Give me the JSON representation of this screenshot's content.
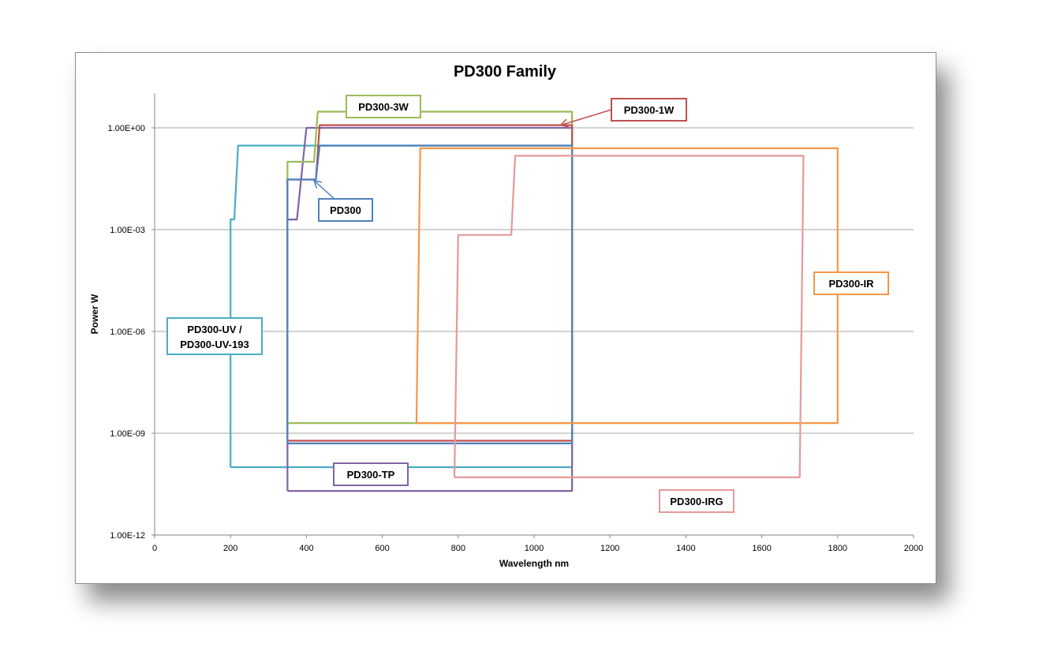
{
  "chart_data": {
    "type": "line",
    "title": "PD300 Family",
    "xlabel": "Wavelength nm",
    "ylabel": "Power W",
    "xlim": [
      0,
      2000
    ],
    "ylim_log10": [
      -12,
      1
    ],
    "y_scale": "log",
    "x_ticks": [
      0,
      200,
      400,
      600,
      800,
      1000,
      1200,
      1400,
      1600,
      1800,
      2000
    ],
    "y_ticks": [
      {
        "value": 1,
        "label": "1.00E+00"
      },
      {
        "value": 0.001,
        "label": "1.00E-03"
      },
      {
        "value": 1e-06,
        "label": "1.00E-06"
      },
      {
        "value": 1e-09,
        "label": "1.00E-09"
      },
      {
        "value": 1e-12,
        "label": "1.00E-12"
      }
    ],
    "grid": true,
    "legend": "none",
    "series": [
      {
        "name": "PD300-UV / PD300-UV-193",
        "color": "#4bacc6",
        "points": [
          [
            200,
            1e-10
          ],
          [
            200,
            0.002
          ],
          [
            210,
            0.002
          ],
          [
            220,
            0.3
          ],
          [
            1100,
            0.3
          ],
          [
            1100,
            1e-10
          ],
          [
            200,
            1e-10
          ]
        ]
      },
      {
        "name": "PD300-TP",
        "color": "#8064a2",
        "points": [
          [
            350,
            2e-11
          ],
          [
            350,
            0.002
          ],
          [
            375,
            0.002
          ],
          [
            400,
            1
          ],
          [
            1100,
            1
          ],
          [
            1100,
            2e-11
          ],
          [
            350,
            2e-11
          ]
        ]
      },
      {
        "name": "PD300-3W",
        "color": "#9bbb59",
        "points": [
          [
            350,
            2e-09
          ],
          [
            350,
            0.1
          ],
          [
            420,
            0.1
          ],
          [
            430,
            3
          ],
          [
            1100,
            3
          ],
          [
            1100,
            2e-09
          ],
          [
            350,
            2e-09
          ]
        ]
      },
      {
        "name": "PD300-1W",
        "color": "#c0504d",
        "points": [
          [
            350,
            6e-10
          ],
          [
            350,
            0.03
          ],
          [
            425,
            0.03
          ],
          [
            435,
            1.2
          ],
          [
            1100,
            1.2
          ],
          [
            1100,
            6e-10
          ],
          [
            350,
            6e-10
          ]
        ]
      },
      {
        "name": "PD300",
        "color": "#4f81bd",
        "points": [
          [
            350,
            5e-10
          ],
          [
            350,
            0.03
          ],
          [
            425,
            0.03
          ],
          [
            435,
            0.3
          ],
          [
            1100,
            0.3
          ],
          [
            1100,
            5e-10
          ],
          [
            350,
            5e-10
          ]
        ]
      },
      {
        "name": "PD300-IR",
        "color": "#f79646",
        "points": [
          [
            690,
            2e-09
          ],
          [
            700,
            0.25
          ],
          [
            1800,
            0.25
          ],
          [
            1800,
            2e-09
          ],
          [
            690,
            2e-09
          ]
        ]
      },
      {
        "name": "PD300-IRG",
        "color": "#e6999a",
        "points": [
          [
            790,
            5e-11
          ],
          [
            800,
            0.0007
          ],
          [
            940,
            0.0007
          ],
          [
            950,
            0.15
          ],
          [
            1710,
            0.15
          ],
          [
            1700,
            5e-11
          ],
          [
            790,
            5e-11
          ]
        ]
      }
    ],
    "annotations": [
      {
        "text": "PD300-3W",
        "color": "#9bbb59",
        "arrow": false
      },
      {
        "text": "PD300-1W",
        "color": "#c0504d",
        "arrow": true,
        "target": [
          1070,
          1.2
        ]
      },
      {
        "text": "PD300",
        "color": "#4f81bd",
        "arrow": true,
        "target": [
          420,
          0.028
        ]
      },
      {
        "text": "PD300-IR",
        "color": "#f79646",
        "arrow": false
      },
      {
        "text": "PD300-UV /",
        "text2": "PD300-UV-193",
        "color": "#4bacc6",
        "arrow": false
      },
      {
        "text": "PD300-TP",
        "color": "#8064a2",
        "arrow": false
      },
      {
        "text": "PD300-IRG",
        "color": "#e6999a",
        "arrow": false
      }
    ]
  }
}
